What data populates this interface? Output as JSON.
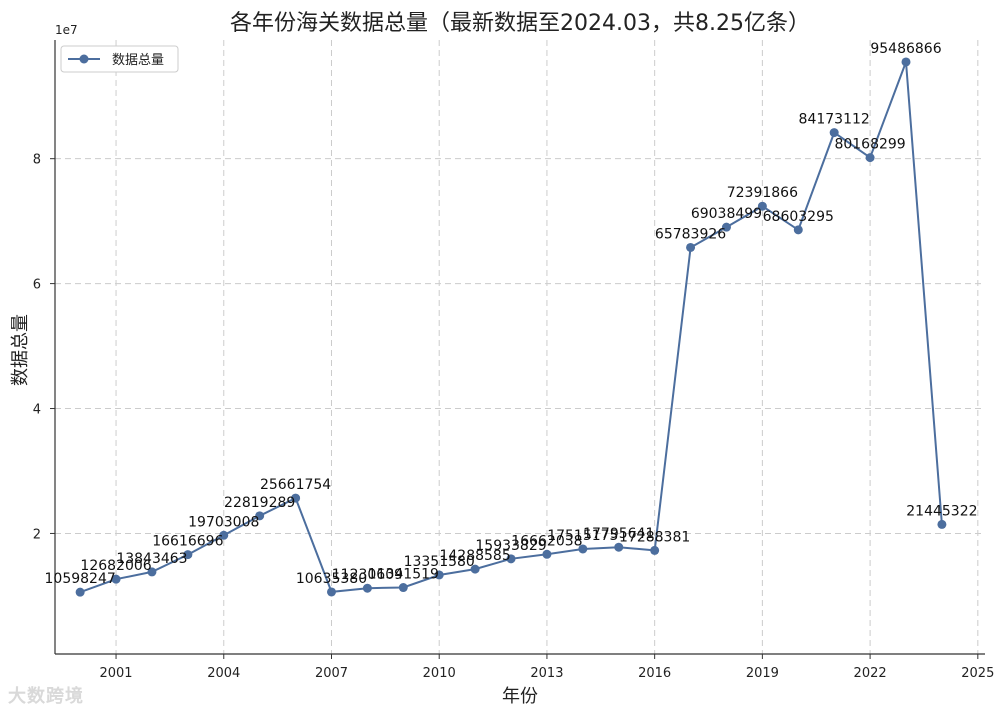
{
  "chart_data": {
    "type": "line",
    "title": "各年份海关数据总量（最新数据至2024.03，共8.25亿条）",
    "xlabel": "年份",
    "ylabel": "数据总量",
    "y_scale_label": "1e7",
    "legend": {
      "entries": [
        "数据总量"
      ],
      "placement": "top-left"
    },
    "grid": true,
    "color": "#4c6e9e",
    "xlim": [
      1999.3,
      2025.2
    ],
    "ylim": [
      700000,
      99000000
    ],
    "x_ticks": [
      2001,
      2004,
      2007,
      2010,
      2013,
      2016,
      2019,
      2022,
      2025
    ],
    "y_ticks": [
      20000000,
      40000000,
      60000000,
      80000000
    ],
    "y_tick_labels": [
      "2",
      "4",
      "6",
      "8"
    ],
    "series": [
      {
        "name": "数据总量",
        "x": [
          2000,
          2001,
          2002,
          2003,
          2004,
          2005,
          2006,
          2007,
          2008,
          2009,
          2010,
          2011,
          2012,
          2013,
          2014,
          2015,
          2016,
          2017,
          2018,
          2019,
          2020,
          2021,
          2022,
          2023,
          2024
        ],
        "values": [
          10598247,
          12682006,
          13843463,
          16616696,
          19703008,
          22819289,
          25661754,
          10635380,
          11230609,
          11341519,
          13351580,
          14288585,
          15933829,
          16662038,
          17515175,
          17795641,
          17288381,
          65783926,
          69038499,
          72391866,
          68603295,
          84173112,
          80168299,
          95486866,
          21445322
        ]
      }
    ]
  },
  "watermark": "大数跨境"
}
